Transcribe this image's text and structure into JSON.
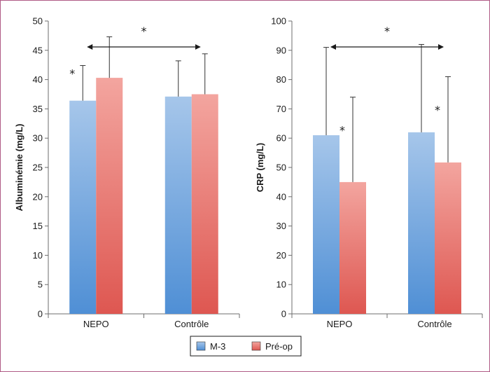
{
  "chart_data": [
    {
      "type": "bar",
      "categories": [
        "NEPO",
        "Contrôle"
      ],
      "ylabel": "Albuminémie (mg/L)",
      "ylim": [
        0,
        50
      ],
      "yticks": [
        0,
        5,
        10,
        15,
        20,
        25,
        30,
        35,
        40,
        45,
        50
      ],
      "series": [
        {
          "name": "M-3",
          "values": [
            36.4,
            37.1
          ],
          "errors": [
            6.0,
            6.1
          ]
        },
        {
          "name": "Pré-op",
          "values": [
            40.3,
            37.5
          ],
          "errors": [
            7.0,
            6.9
          ]
        }
      ],
      "annotations": [
        {
          "text": "*",
          "category": 0,
          "series": 0
        },
        {
          "text": "*",
          "between": [
            0,
            1
          ]
        }
      ]
    },
    {
      "type": "bar",
      "categories": [
        "NEPO",
        "Contrôle"
      ],
      "ylabel": "CRP (mg/L)",
      "ylim": [
        0,
        100
      ],
      "yticks": [
        0,
        10,
        20,
        30,
        40,
        50,
        60,
        70,
        80,
        90,
        100
      ],
      "series": [
        {
          "name": "M-3",
          "values": [
            61,
            62
          ],
          "errors": [
            30,
            30
          ]
        },
        {
          "name": "Pré-op",
          "values": [
            45,
            51.7
          ],
          "errors": [
            29,
            29.3
          ]
        }
      ],
      "annotations": [
        {
          "text": "*",
          "category": 0,
          "series": 1
        },
        {
          "text": "*",
          "category": 1,
          "series": 1
        },
        {
          "text": "*",
          "between": [
            0,
            1
          ]
        }
      ]
    }
  ],
  "legend": {
    "position": "bottom-center",
    "items": [
      {
        "label": "M-3",
        "color": "#5b95d6"
      },
      {
        "label": "Pré-op",
        "color": "#e0605a"
      }
    ]
  },
  "colors": {
    "m3_top": "#a6c6ea",
    "m3_bottom": "#4f8fd5",
    "preop_top": "#f3a59f",
    "preop_bottom": "#de5751",
    "frame": "#b05a86"
  }
}
